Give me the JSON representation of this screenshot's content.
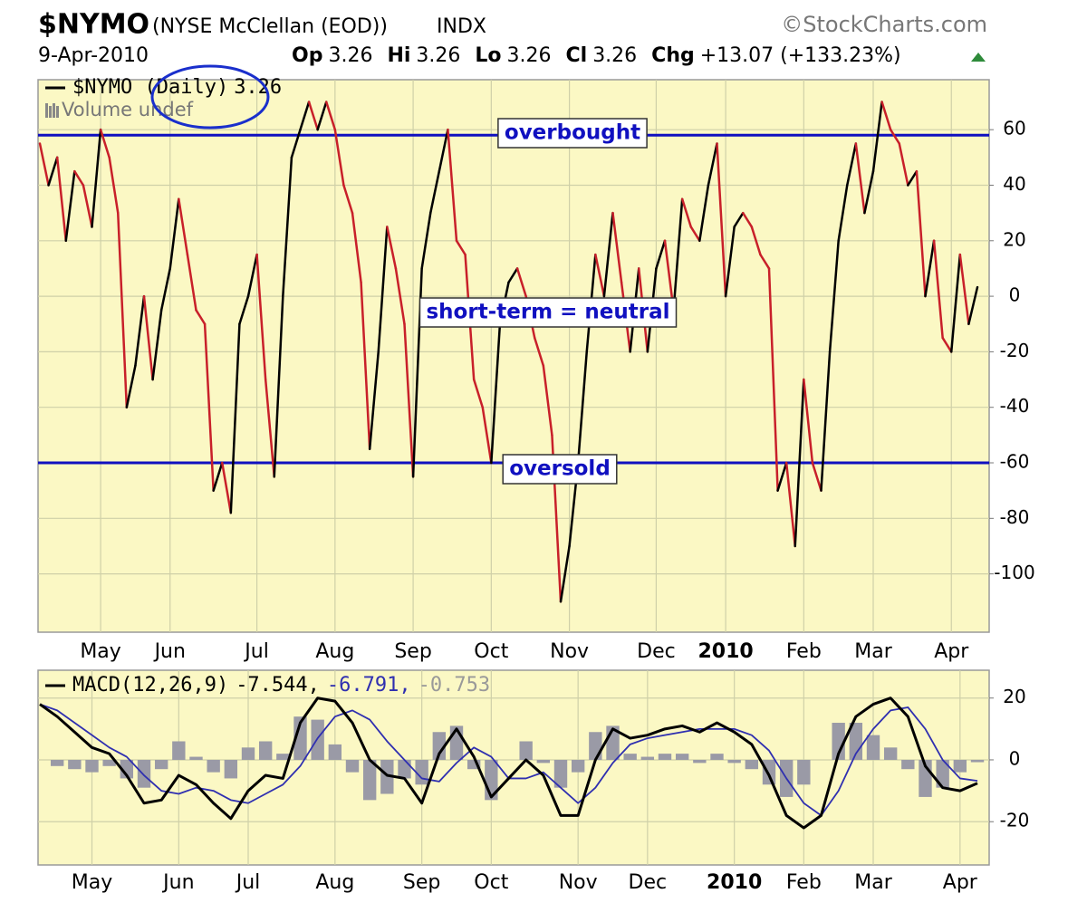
{
  "header": {
    "symbol": "$NYMO",
    "description": "(NYSE McClellan (EOD))",
    "exchange": "INDX",
    "credit": "©StockCharts.com",
    "date": "9-Apr-2010",
    "quote": [
      {
        "label": "Op",
        "value": "3.26"
      },
      {
        "label": "Hi",
        "value": "3.26"
      },
      {
        "label": "Lo",
        "value": "3.26"
      },
      {
        "label": "Cl",
        "value": "3.26"
      },
      {
        "label": "Chg",
        "value": "+13.07 (+133.23%)"
      }
    ]
  },
  "chart_data": [
    {
      "type": "line",
      "legend_label": "3.26",
      "volume_legend": "Volume undef",
      "categories": [
        null,
        null,
        null,
        null,
        null,
        null,
        null,
        "May",
        null,
        null,
        null,
        null,
        null,
        null,
        null,
        "Jun",
        null,
        null,
        null,
        null,
        null,
        null,
        null,
        null,
        null,
        "Jul",
        null,
        null,
        null,
        null,
        null,
        null,
        null,
        null,
        "Aug",
        null,
        null,
        null,
        null,
        null,
        null,
        null,
        null,
        "Sep",
        null,
        null,
        null,
        null,
        null,
        null,
        null,
        null,
        "Oct",
        null,
        null,
        null,
        null,
        null,
        null,
        null,
        null,
        "Nov",
        null,
        null,
        null,
        null,
        null,
        null,
        null,
        null,
        null,
        "Dec",
        null,
        null,
        null,
        null,
        null,
        null,
        null,
        "2010",
        null,
        null,
        null,
        null,
        null,
        null,
        null,
        null,
        "Feb",
        null,
        null,
        null,
        null,
        null,
        null,
        null,
        "Mar",
        null,
        null,
        null,
        null,
        null,
        null,
        null,
        null,
        "Apr",
        null,
        null,
        null
      ],
      "series": [
        {
          "name": "$NYMO (Daily)",
          "up_color": "#000000",
          "down_color": "#c8202a",
          "values": [
            55,
            40,
            50,
            20,
            45,
            40,
            25,
            60,
            50,
            30,
            -40,
            -25,
            0,
            -30,
            -5,
            10,
            35,
            15,
            -5,
            -10,
            -70,
            -60,
            -78,
            -10,
            0,
            15,
            -30,
            -65,
            0,
            50,
            60,
            70,
            60,
            70,
            60,
            40,
            30,
            5,
            -55,
            -20,
            25,
            10,
            -10,
            -65,
            10,
            30,
            45,
            60,
            20,
            15,
            -30,
            -40,
            -60,
            -10,
            5,
            10,
            0,
            -15,
            -25,
            -50,
            -110,
            -90,
            -60,
            -20,
            15,
            0,
            30,
            5,
            -20,
            10,
            -20,
            10,
            20,
            -5,
            35,
            25,
            20,
            40,
            55,
            0,
            25,
            30,
            25,
            15,
            10,
            -70,
            -60,
            -90,
            -30,
            -60,
            -70,
            -20,
            20,
            40,
            55,
            30,
            45,
            70,
            60,
            55,
            40,
            45,
            0,
            20,
            -15,
            -20,
            15,
            -10,
            3.26
          ]
        }
      ],
      "hlines": [
        58,
        -60
      ],
      "hline_color": "#1010c0",
      "annotations": [
        "overbought",
        "short-term = neutral",
        "oversold"
      ],
      "ylim": [
        -121,
        78
      ],
      "yticks": [
        60,
        40,
        20,
        0,
        -20,
        -40,
        -60,
        -80,
        -100
      ],
      "grid": true
    },
    {
      "type": "line",
      "categories": [
        null,
        null,
        null,
        "May",
        null,
        null,
        null,
        null,
        "Jun",
        null,
        null,
        null,
        "Jul",
        null,
        null,
        null,
        null,
        "Aug",
        null,
        null,
        null,
        null,
        "Sep",
        null,
        null,
        null,
        "Oct",
        null,
        null,
        null,
        null,
        "Nov",
        null,
        null,
        null,
        "Dec",
        null,
        null,
        null,
        null,
        "2010",
        null,
        null,
        null,
        "Feb",
        null,
        null,
        null,
        "Mar",
        null,
        null,
        null,
        null,
        "Apr",
        null
      ],
      "series": [
        {
          "name": "MACD(12,26,9)",
          "legend_label": "-7.544,",
          "color": "#000000",
          "values": [
            18,
            14,
            9,
            4,
            2,
            -5,
            -14,
            -13,
            -5,
            -8,
            -14,
            -19,
            -10,
            -5,
            -6,
            12,
            20,
            19,
            12,
            0,
            -5,
            -6,
            -14,
            2,
            10,
            1,
            -12,
            -6,
            0,
            -5,
            -18,
            -18,
            0,
            10,
            7,
            8,
            10,
            11,
            9,
            12,
            9,
            5,
            -5,
            -18,
            -22,
            -18,
            2,
            14,
            18,
            20,
            14,
            -2,
            -9,
            -10,
            -7.544
          ]
        },
        {
          "legend_label": "-6.791,",
          "color": "#2f2fb0",
          "values": [
            18,
            16,
            12,
            8,
            4,
            1,
            -5,
            -10,
            -11,
            -9,
            -10,
            -13,
            -14,
            -11,
            -8,
            -2,
            7,
            14,
            16,
            13,
            6,
            0,
            -6,
            -7,
            -1,
            4,
            1,
            -6,
            -6,
            -4,
            -9,
            -14,
            -9,
            -1,
            5,
            7,
            8,
            9,
            10,
            10,
            10,
            8,
            3,
            -6,
            -14,
            -18,
            -10,
            2,
            10,
            16,
            17,
            10,
            0,
            -6,
            -6.791
          ]
        },
        {
          "type": "bar",
          "legend_label": "-0.753",
          "color": "#9a9aa6",
          "values": [
            0,
            -2,
            -3,
            -4,
            -2,
            -6,
            -9,
            -3,
            6,
            1,
            -4,
            -6,
            4,
            6,
            2,
            14,
            13,
            5,
            -4,
            -13,
            -11,
            -6,
            -8,
            9,
            11,
            -3,
            -13,
            0,
            6,
            -1,
            -9,
            -4,
            9,
            11,
            2,
            1,
            2,
            2,
            -1,
            2,
            -1,
            -3,
            -8,
            -12,
            -8,
            0,
            12,
            12,
            8,
            4,
            -3,
            -12,
            -9,
            -4,
            -0.753
          ]
        }
      ],
      "ylim": [
        -34,
        29
      ],
      "yticks": [
        20,
        0,
        -20
      ],
      "grid": true
    }
  ]
}
